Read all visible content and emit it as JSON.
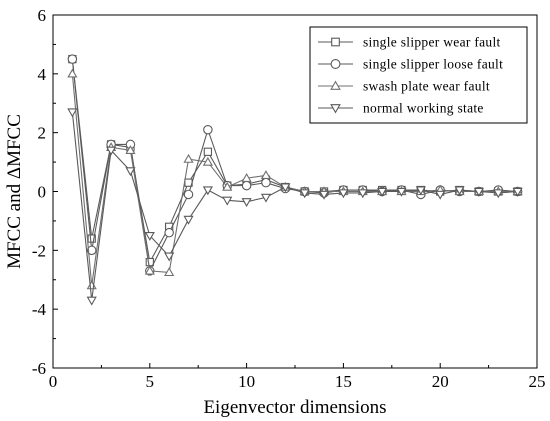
{
  "chart_data": {
    "type": "line",
    "title": "",
    "xlabel": "Eigenvector dimensions",
    "ylabel": "MFCC and ΔMFCC",
    "xlim": [
      0,
      25
    ],
    "ylim": [
      -6,
      6
    ],
    "xticks": [
      0,
      5,
      10,
      15,
      20,
      25
    ],
    "yticks": [
      -6,
      -4,
      -2,
      0,
      2,
      4,
      6
    ],
    "grid": false,
    "legend_position": "top-right",
    "x": [
      1,
      2,
      3,
      4,
      5,
      6,
      7,
      8,
      9,
      10,
      11,
      12,
      13,
      14,
      15,
      16,
      17,
      18,
      19,
      20,
      21,
      22,
      23,
      24
    ],
    "series": [
      {
        "name": "single slipper wear fault",
        "marker": "square",
        "color": "#5a5a5a",
        "values": [
          4.5,
          -1.6,
          1.6,
          1.5,
          -2.4,
          -1.2,
          0.3,
          1.35,
          0.2,
          0.25,
          0.4,
          0.15,
          0.0,
          0.0,
          0.05,
          0.05,
          0.05,
          0.05,
          0.05,
          0.0,
          0.05,
          0.0,
          0.0,
          0.0
        ]
      },
      {
        "name": "single slipper loose fault",
        "marker": "circle",
        "color": "#5a5a5a",
        "values": [
          4.5,
          -2.0,
          1.6,
          1.6,
          -2.7,
          -1.4,
          -0.1,
          2.1,
          0.2,
          0.2,
          0.3,
          0.1,
          0.0,
          -0.05,
          0.05,
          0.05,
          0.0,
          0.05,
          -0.1,
          0.05,
          0.0,
          0.0,
          0.05,
          0.0
        ]
      },
      {
        "name": "swash plate wear fault",
        "marker": "triangle-up",
        "color": "#707070",
        "values": [
          4.0,
          -3.2,
          1.5,
          1.4,
          -2.7,
          -2.75,
          1.1,
          1.0,
          0.15,
          0.45,
          0.55,
          0.15,
          0.0,
          0.0,
          0.0,
          0.0,
          0.0,
          0.0,
          0.0,
          0.05,
          0.0,
          0.0,
          0.0,
          0.0
        ]
      },
      {
        "name": "normal working state",
        "marker": "triangle-down",
        "color": "#5a5a5a",
        "values": [
          2.7,
          -3.7,
          1.4,
          0.7,
          -1.5,
          -2.2,
          -0.95,
          0.05,
          -0.3,
          -0.35,
          -0.2,
          0.15,
          -0.05,
          -0.1,
          -0.05,
          -0.05,
          0.0,
          0.0,
          0.05,
          -0.1,
          0.05,
          0.0,
          -0.05,
          0.0
        ]
      }
    ]
  }
}
